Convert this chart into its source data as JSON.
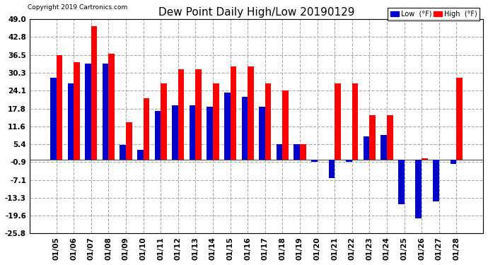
{
  "title": "Dew Point Daily High/Low 20190129",
  "copyright": "Copyright 2019 Cartronics.com",
  "dates": [
    "01/05",
    "01/06",
    "01/07",
    "01/08",
    "01/09",
    "01/10",
    "01/11",
    "01/12",
    "01/13",
    "01/14",
    "01/15",
    "01/16",
    "01/17",
    "01/18",
    "01/19",
    "01/20",
    "01/21",
    "01/22",
    "01/23",
    "01/24",
    "01/25",
    "01/26",
    "01/27",
    "01/28"
  ],
  "high_vals": [
    36.5,
    34.0,
    46.5,
    37.0,
    13.0,
    21.5,
    26.5,
    31.5,
    31.5,
    26.5,
    32.5,
    32.5,
    26.5,
    24.1,
    5.4,
    0.0,
    26.5,
    26.5,
    15.5,
    15.5,
    0.0,
    0.5,
    0.0,
    28.5
  ],
  "low_vals": [
    28.5,
    26.5,
    33.5,
    33.5,
    5.0,
    3.5,
    17.0,
    19.0,
    19.0,
    18.5,
    23.5,
    22.0,
    18.5,
    5.4,
    5.4,
    -0.9,
    -6.5,
    -0.9,
    8.0,
    8.5,
    -15.5,
    -20.5,
    -14.5,
    -1.5
  ],
  "high_color": "#ff0000",
  "low_color": "#0000cc",
  "ylim_min": -25.8,
  "ylim_max": 49.0,
  "yticks": [
    49.0,
    42.8,
    36.5,
    30.3,
    24.1,
    17.8,
    11.6,
    5.4,
    -0.9,
    -7.1,
    -13.3,
    -19.6,
    -25.8
  ],
  "bg_color": "#ffffff",
  "grid_color": "#aaaaaa",
  "title_fontsize": 11,
  "bar_width": 0.35,
  "legend_low_label": "Low  (°F)",
  "legend_high_label": "High  (°F)"
}
